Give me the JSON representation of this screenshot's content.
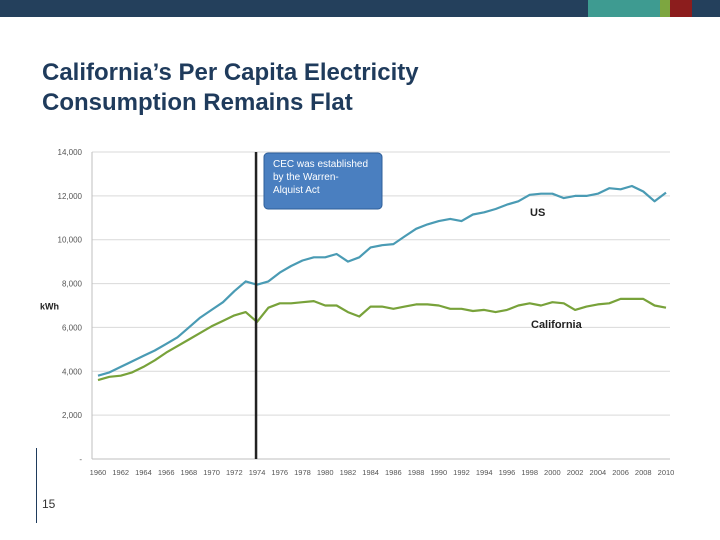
{
  "slide": {
    "title_line1": "California’s Per Capita Electricity",
    "title_line2": "Consumption Remains Flat",
    "page_number": "15",
    "colors": {
      "band_navy": "#24405c",
      "band_teal": "#3e9b91",
      "band_green": "#7da640",
      "band_red": "#8c1d1d",
      "title": "#1f3b5c"
    }
  },
  "chart_data": {
    "type": "line",
    "x": [
      1960,
      1961,
      1962,
      1963,
      1964,
      1965,
      1966,
      1967,
      1968,
      1969,
      1970,
      1971,
      1972,
      1973,
      1974,
      1975,
      1976,
      1977,
      1978,
      1979,
      1980,
      1981,
      1982,
      1983,
      1984,
      1985,
      1986,
      1987,
      1988,
      1989,
      1990,
      1991,
      1992,
      1993,
      1994,
      1995,
      1996,
      1997,
      1998,
      1999,
      2000,
      2001,
      2002,
      2003,
      2004,
      2005,
      2006,
      2007,
      2008,
      2009,
      2010
    ],
    "xticks": [
      "1960",
      "1962",
      "1964",
      "1966",
      "1968",
      "1970",
      "1972",
      "1974",
      "1976",
      "1978",
      "1980",
      "1982",
      "1984",
      "1986",
      "1988",
      "1990",
      "1992",
      "1994",
      "1996",
      "1998",
      "2000",
      "2002",
      "2004",
      "2006",
      "2008",
      "2010"
    ],
    "ylim": [
      0,
      14000
    ],
    "yticks": [
      "-",
      "2,000",
      "4,000",
      "6,000",
      "8,000",
      "10,000",
      "12,000",
      "14,000"
    ],
    "ylabel": "kWh",
    "series": [
      {
        "name": "US",
        "color": "#4a9bb4",
        "values": [
          3800,
          3950,
          4200,
          4450,
          4700,
          4950,
          5250,
          5550,
          6000,
          6450,
          6800,
          7150,
          7650,
          8100,
          7950,
          8100,
          8500,
          8800,
          9050,
          9200,
          9200,
          9350,
          9000,
          9200,
          9650,
          9750,
          9800,
          10150,
          10500,
          10700,
          10850,
          10950,
          10850,
          11150,
          11250,
          11400,
          11600,
          11750,
          12050,
          12100,
          12100,
          11900,
          12000,
          12000,
          12100,
          12350,
          12300,
          12450,
          12200,
          11750,
          12150
        ]
      },
      {
        "name": "California",
        "color": "#78a23a",
        "values": [
          3600,
          3750,
          3800,
          3950,
          4200,
          4500,
          4850,
          5150,
          5450,
          5750,
          6050,
          6300,
          6550,
          6700,
          6250,
          6900,
          7100,
          7100,
          7150,
          7200,
          7000,
          7000,
          6700,
          6500,
          6950,
          6950,
          6850,
          6950,
          7050,
          7050,
          7000,
          6850,
          6850,
          6750,
          6800,
          6700,
          6800,
          7000,
          7100,
          7000,
          7150,
          7100,
          6800,
          6950,
          7050,
          7100,
          7300,
          7300,
          7300,
          7000,
          6900
        ]
      }
    ],
    "event_year": 1974,
    "annotation": "CEC was established by the Warren-Alquist Act",
    "annotation_fill": "#4a7fc0",
    "event_line_color": "#222222"
  }
}
